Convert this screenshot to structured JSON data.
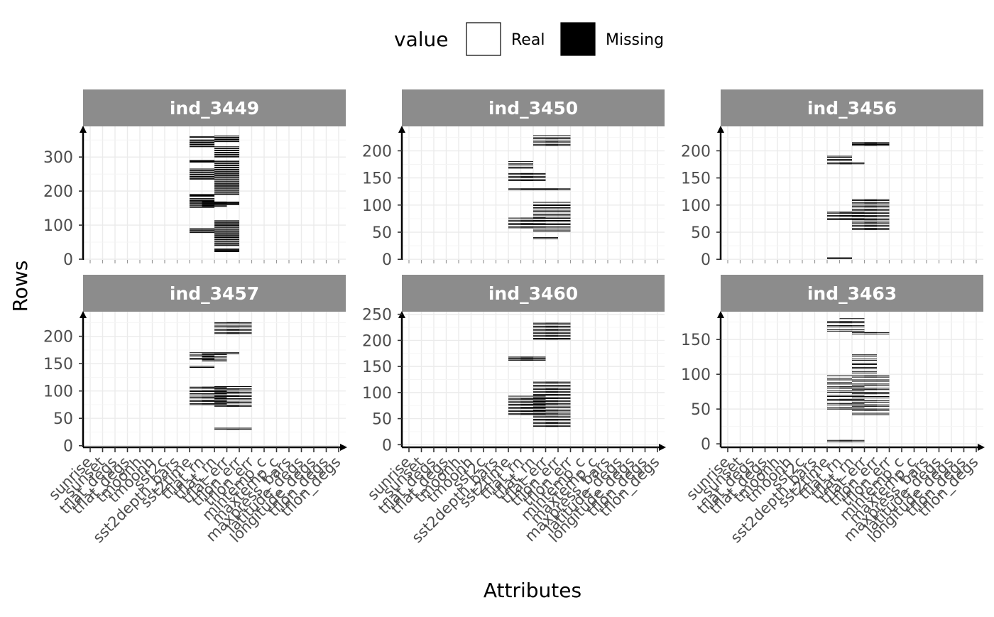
{
  "chart_data": {
    "type": "heatmap",
    "title": "",
    "xlabel": "Attributes",
    "ylabel": "Rows",
    "legend": {
      "title": "value",
      "placement": "top",
      "entries": [
        {
          "label": "Real",
          "color": "#ffffff"
        },
        {
          "label": "Missing",
          "color": "#000000"
        }
      ]
    },
    "attributes": [
      "sunrise",
      "sunset",
      "tflat_degs",
      "tflat_degs",
      "tmoonh",
      "tmoonh",
      "sst2c",
      "sst2depth_bars",
      "sst2time",
      "tflat_rn",
      "tflat_rn",
      "tflat_err",
      "tflon_err",
      "tflon_err",
      "mintemp_c",
      "maxtemp_c",
      "maxpress_bars",
      "latitude_degs",
      "longitude_degs",
      "tflon_degs",
      "tflon_degs"
    ],
    "colors": {
      "facet_strip": "#8c8c8c",
      "strip_text": "#ffffff",
      "grid": "#ebebeb",
      "missing": "#000000"
    },
    "facets": [
      {
        "label": "ind_3449",
        "ylim": [
          -2,
          390
        ],
        "yticks": [
          0,
          100,
          200,
          300
        ],
        "missing": [
          {
            "attr": 9,
            "rows": [
              [
                78,
                90
              ],
              [
                152,
                180
              ],
              [
                185,
                190
              ],
              [
                235,
                265
              ],
              [
                285,
                290
              ],
              [
                330,
                350
              ],
              [
                358,
                360
              ]
            ]
          },
          {
            "attr": 10,
            "rows": [
              [
                155,
                170
              ]
            ]
          },
          {
            "attr": 11,
            "rows": [
              [
                22,
                30
              ],
              [
                40,
                115
              ],
              [
                160,
                168
              ],
              [
                190,
                290
              ],
              [
                300,
                330
              ],
              [
                345,
                362
              ]
            ]
          }
        ]
      },
      {
        "label": "ind_3450",
        "ylim": [
          -1,
          245
        ],
        "yticks": [
          0,
          50,
          100,
          150,
          200
        ],
        "missing": [
          {
            "attr": 9,
            "rows": [
              [
                58,
                76
              ],
              [
                128,
                130
              ],
              [
                145,
                160
              ],
              [
                168,
                180
              ]
            ]
          },
          {
            "attr": 10,
            "rows": [
              [
                58,
                76
              ],
              [
                128,
                130
              ],
              [
                145,
                160
              ]
            ]
          },
          {
            "attr": 11,
            "rows": [
              [
                38,
                40
              ],
              [
                52,
                105
              ],
              [
                128,
                130
              ],
              [
                210,
                228
              ]
            ]
          },
          {
            "attr": 12,
            "rows": [
              [
                52,
                105
              ],
              [
                128,
                130
              ],
              [
                210,
                228
              ]
            ]
          }
        ]
      },
      {
        "label": "ind_3456",
        "ylim": [
          -1,
          245
        ],
        "yticks": [
          0,
          50,
          100,
          150,
          200
        ],
        "missing": [
          {
            "attr": 9,
            "rows": [
              [
                1,
                3
              ],
              [
                73,
                87
              ],
              [
                176,
                192
              ]
            ]
          },
          {
            "attr": 10,
            "rows": [
              [
                73,
                87
              ],
              [
                176,
                178
              ]
            ]
          },
          {
            "attr": 11,
            "rows": [
              [
                55,
                110
              ],
              [
                210,
                215
              ]
            ]
          },
          {
            "attr": 12,
            "rows": [
              [
                55,
                110
              ],
              [
                210,
                215
              ]
            ]
          }
        ]
      },
      {
        "label": "ind_3457",
        "ylim": [
          -3,
          245
        ],
        "yticks": [
          0,
          50,
          100,
          150,
          200
        ],
        "missing": [
          {
            "attr": 9,
            "rows": [
              [
                75,
                107
              ],
              [
                143,
                145
              ],
              [
                158,
                170
              ]
            ]
          },
          {
            "attr": 10,
            "rows": [
              [
                75,
                107
              ],
              [
                155,
                170
              ]
            ]
          },
          {
            "attr": 11,
            "rows": [
              [
                30,
                32
              ],
              [
                72,
                108
              ],
              [
                168,
                170
              ],
              [
                205,
                225
              ]
            ]
          },
          {
            "attr": 12,
            "rows": [
              [
                30,
                32
              ],
              [
                72,
                108
              ],
              [
                205,
                225
              ]
            ]
          }
        ]
      },
      {
        "label": "ind_3460",
        "ylim": [
          -5,
          255
        ],
        "yticks": [
          0,
          50,
          100,
          150,
          200,
          250
        ],
        "missing": [
          {
            "attr": 9,
            "rows": [
              [
                58,
                93
              ],
              [
                162,
                168
              ]
            ]
          },
          {
            "attr": 10,
            "rows": [
              [
                58,
                93
              ],
              [
                162,
                168
              ]
            ]
          },
          {
            "attr": 11,
            "rows": [
              [
                35,
                120
              ],
              [
                202,
                235
              ]
            ]
          },
          {
            "attr": 12,
            "rows": [
              [
                35,
                120
              ],
              [
                202,
                235
              ]
            ]
          }
        ]
      },
      {
        "label": "ind_3463",
        "ylim": [
          -5,
          190
        ],
        "yticks": [
          0,
          50,
          100,
          150
        ],
        "missing": [
          {
            "attr": 9,
            "rows": [
              [
                3,
                5
              ],
              [
                50,
                98
              ],
              [
                162,
                178
              ]
            ]
          },
          {
            "attr": 10,
            "rows": [
              [
                3,
                5
              ],
              [
                50,
                82
              ],
              [
                162,
                180
              ]
            ]
          },
          {
            "attr": 11,
            "rows": [
              [
                42,
                130
              ],
              [
                158,
                160
              ]
            ]
          },
          {
            "attr": 12,
            "rows": [
              [
                42,
                100
              ],
              [
                158,
                160
              ]
            ]
          }
        ]
      }
    ]
  }
}
